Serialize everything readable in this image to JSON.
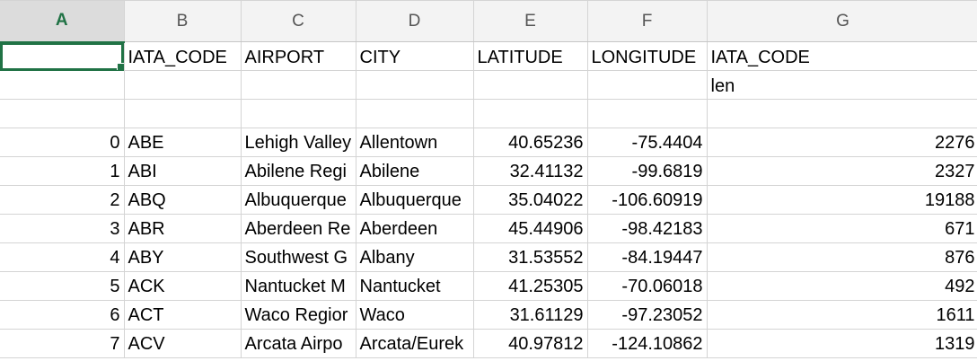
{
  "columns": [
    "A",
    "B",
    "C",
    "D",
    "E",
    "F",
    "G"
  ],
  "active_column": "A",
  "header_row": [
    "",
    "IATA_CODE",
    "AIRPORT",
    "CITY",
    "LATITUDE",
    "LONGITUDE",
    "IATA_CODE"
  ],
  "subheader_row": [
    "",
    "",
    "",
    "",
    "",
    "",
    "len"
  ],
  "rows": [
    {
      "index": "0",
      "iata": "ABE",
      "airport": "Lehigh Valley",
      "city": "Allentown",
      "lat": "40.65236",
      "lon": "-75.4404",
      "len": "2276"
    },
    {
      "index": "1",
      "iata": "ABI",
      "airport": "Abilene Regi",
      "city": "Abilene",
      "lat": "32.41132",
      "lon": "-99.6819",
      "len": "2327"
    },
    {
      "index": "2",
      "iata": "ABQ",
      "airport": "Albuquerque",
      "city": "Albuquerque",
      "lat": "35.04022",
      "lon": "-106.60919",
      "len": "19188"
    },
    {
      "index": "3",
      "iata": "ABR",
      "airport": "Aberdeen Re",
      "city": "Aberdeen",
      "lat": "45.44906",
      "lon": "-98.42183",
      "len": "671"
    },
    {
      "index": "4",
      "iata": "ABY",
      "airport": "Southwest G",
      "city": "Albany",
      "lat": "31.53552",
      "lon": "-84.19447",
      "len": "876"
    },
    {
      "index": "5",
      "iata": "ACK",
      "airport": "Nantucket M",
      "city": "Nantucket",
      "lat": "41.25305",
      "lon": "-70.06018",
      "len": "492"
    },
    {
      "index": "6",
      "iata": "ACT",
      "airport": "Waco Regior",
      "city": "Waco",
      "lat": "31.61129",
      "lon": "-97.23052",
      "len": "1611"
    },
    {
      "index": "7",
      "iata": "ACV",
      "airport": "Arcata Airpo",
      "city": "Arcata/Eurek",
      "lat": "40.97812",
      "lon": "-124.10862",
      "len": "1319"
    }
  ],
  "colors": {
    "selection": "#207245",
    "header_bg": "#f3f3f3",
    "gridline": "#d4d4d4"
  }
}
